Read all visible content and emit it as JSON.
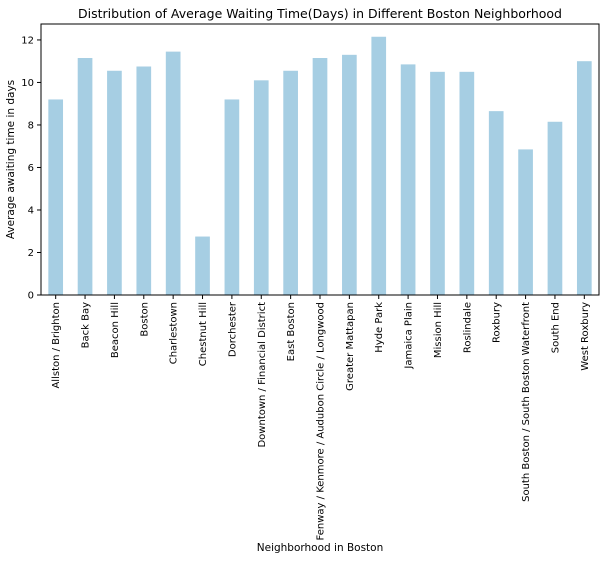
{
  "chart_data": {
    "type": "bar",
    "title": "Distribution of Average Waiting Time(Days) in Different Boston Neighborhood",
    "xlabel": "Neighborhood in Boston",
    "ylabel": "Average awaiting time in days",
    "ylim": [
      0,
      12.75
    ],
    "yticks": [
      0,
      2,
      4,
      6,
      8,
      10,
      12
    ],
    "grid": false,
    "bar_color": "#a6cee3",
    "categories": [
      "Allston / Brighton",
      "Back Bay",
      "Beacon Hill",
      "Boston",
      "Charlestown",
      "Chestnut Hill",
      "Dorchester",
      "Downtown / Financial District",
      "East Boston",
      "Fenway / Kenmore / Audubon Circle / Longwood",
      "Greater Mattapan",
      "Hyde Park",
      "Jamaica Plain",
      "Mission Hill",
      "Roslindale",
      "Roxbury",
      "South Boston / South Boston Waterfront",
      "South End",
      "West Roxbury"
    ],
    "values": [
      9.2,
      11.15,
      10.55,
      10.75,
      11.45,
      2.75,
      9.2,
      10.1,
      10.55,
      11.15,
      11.3,
      12.15,
      10.85,
      10.5,
      10.5,
      8.65,
      6.85,
      8.15,
      11.0
    ]
  }
}
